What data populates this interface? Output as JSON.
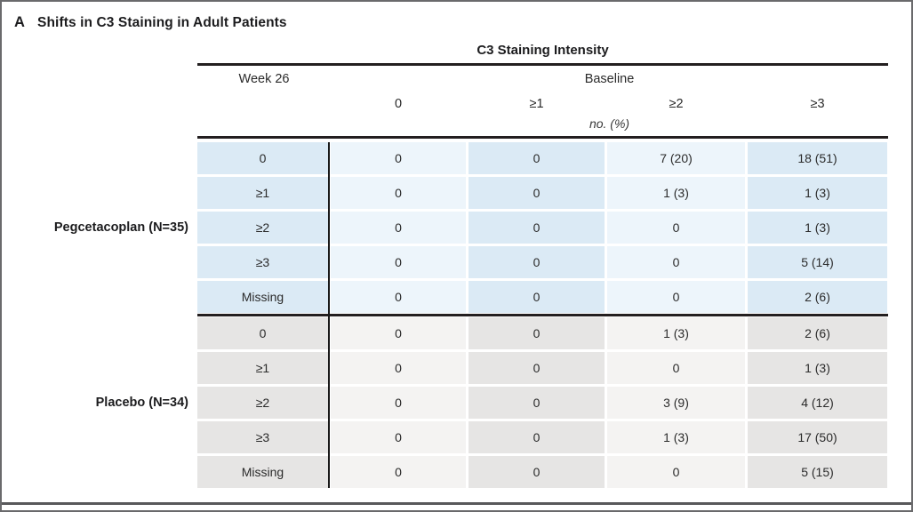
{
  "panel": {
    "letter": "A",
    "title": "Shifts in C3 Staining in Adult Patients"
  },
  "table": {
    "title": "C3 Staining Intensity",
    "row_axis_label": "Week 26",
    "col_axis_label": "Baseline",
    "col_headers": [
      "0",
      "≥1",
      "≥2",
      "≥3"
    ],
    "units_label": "no. (%)",
    "groups": [
      {
        "label": "Pegcetacoplan (N=35)",
        "theme": {
          "dark": "#dbeaf5",
          "light": "#edf5fb"
        },
        "rows": [
          {
            "label": "0",
            "values": [
              "0",
              "0",
              "7 (20)",
              "18 (51)"
            ]
          },
          {
            "label": "≥1",
            "values": [
              "0",
              "0",
              "1 (3)",
              "1 (3)"
            ]
          },
          {
            "label": "≥2",
            "values": [
              "0",
              "0",
              "0",
              "1 (3)"
            ]
          },
          {
            "label": "≥3",
            "values": [
              "0",
              "0",
              "0",
              "5 (14)"
            ]
          },
          {
            "label": "Missing",
            "values": [
              "0",
              "0",
              "0",
              "2 (6)"
            ]
          }
        ]
      },
      {
        "label": "Placebo (N=34)",
        "theme": {
          "dark": "#e6e5e4",
          "light": "#f4f3f2"
        },
        "rows": [
          {
            "label": "0",
            "values": [
              "0",
              "0",
              "1 (3)",
              "2 (6)"
            ]
          },
          {
            "label": "≥1",
            "values": [
              "0",
              "0",
              "0",
              "1 (3)"
            ]
          },
          {
            "label": "≥2",
            "values": [
              "0",
              "0",
              "3 (9)",
              "4 (12)"
            ]
          },
          {
            "label": "≥3",
            "values": [
              "0",
              "0",
              "1 (3)",
              "17 (50)"
            ]
          },
          {
            "label": "Missing",
            "values": [
              "0",
              "0",
              "0",
              "5 (15)"
            ]
          }
        ]
      }
    ]
  },
  "colors": {
    "rule": "#231f20",
    "divider_line": "#1a1a1a",
    "frame": "#6a6a6c",
    "bottom_rule": "#58585a"
  }
}
